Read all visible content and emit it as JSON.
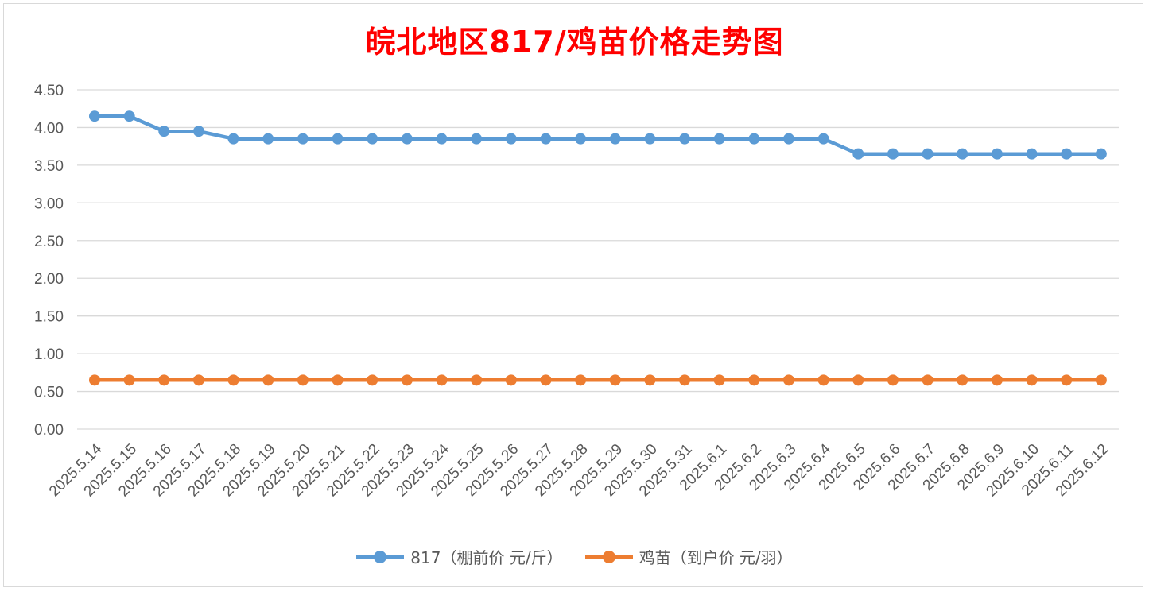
{
  "chart_data": {
    "type": "line",
    "title": "皖北地区817/鸡苗价格走势图",
    "categories": [
      "2025.5.14",
      "2025.5.15",
      "2025.5.16",
      "2025.5.17",
      "2025.5.18",
      "2025.5.19",
      "2025.5.20",
      "2025.5.21",
      "2025.5.22",
      "2025.5.23",
      "2025.5.24",
      "2025.5.25",
      "2025.5.26",
      "2025.5.27",
      "2025.5.28",
      "2025.5.29",
      "2025.5.30",
      "2025.5.31",
      "2025.6.1",
      "2025.6.2",
      "2025.6.3",
      "2025.6.4",
      "2025.6.5",
      "2025.6.6",
      "2025.6.7",
      "2025.6.8",
      "2025.6.9",
      "2025.6.10",
      "2025.6.11",
      "2025.6.12"
    ],
    "series": [
      {
        "name": "817（棚前价 元/斤）",
        "color": "#5b9bd5",
        "values": [
          4.15,
          4.15,
          3.95,
          3.95,
          3.85,
          3.85,
          3.85,
          3.85,
          3.85,
          3.85,
          3.85,
          3.85,
          3.85,
          3.85,
          3.85,
          3.85,
          3.85,
          3.85,
          3.85,
          3.85,
          3.85,
          3.85,
          3.65,
          3.65,
          3.65,
          3.65,
          3.65,
          3.65,
          3.65,
          3.65
        ]
      },
      {
        "name": "鸡苗（到户价 元/羽）",
        "color": "#ed7d31",
        "values": [
          0.65,
          0.65,
          0.65,
          0.65,
          0.65,
          0.65,
          0.65,
          0.65,
          0.65,
          0.65,
          0.65,
          0.65,
          0.65,
          0.65,
          0.65,
          0.65,
          0.65,
          0.65,
          0.65,
          0.65,
          0.65,
          0.65,
          0.65,
          0.65,
          0.65,
          0.65,
          0.65,
          0.65,
          0.65,
          0.65
        ]
      }
    ],
    "yticks": [
      "0.00",
      "0.50",
      "1.00",
      "1.50",
      "2.00",
      "2.50",
      "3.00",
      "3.50",
      "4.00",
      "4.50"
    ],
    "ylim": [
      0,
      4.5
    ],
    "grid": true,
    "legend_position": "bottom"
  }
}
